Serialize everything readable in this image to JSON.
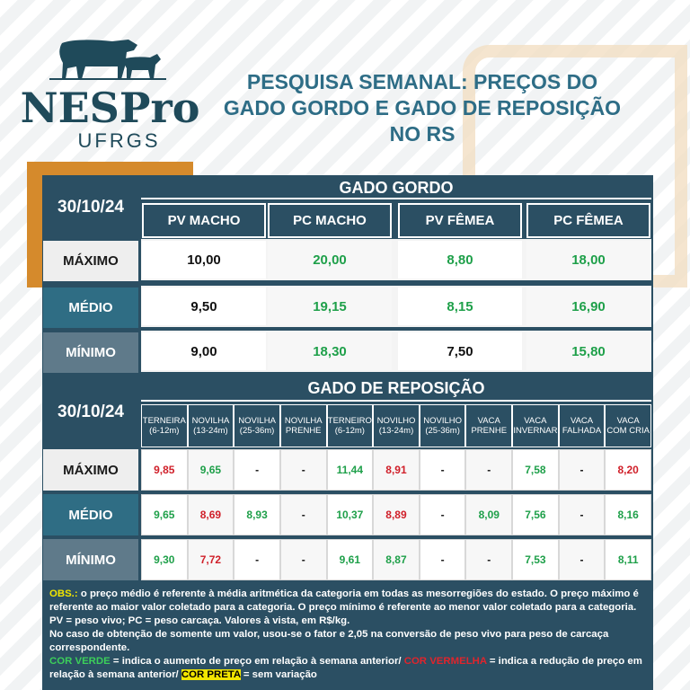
{
  "header": {
    "logo_title": "NESPro",
    "logo_subtitle": "UFRGS",
    "title_lines": [
      "PESQUISA SEMANAL: PREÇOS DO",
      "GADO GORDO E GADO DE REPOSIÇÃO",
      "NO RS"
    ]
  },
  "table1": {
    "date": "30/10/24",
    "title": "GADO GORDO",
    "columns": [
      "PV MACHO",
      "PC MACHO",
      "PV FÊMEA",
      "PC FÊMEA"
    ],
    "rows": [
      {
        "label": "MÁXIMO",
        "values": [
          "10,00",
          "20,00",
          "8,80",
          "18,00"
        ],
        "colors": [
          "#111111",
          "#1fa04a",
          "#1fa04a",
          "#1fa04a"
        ]
      },
      {
        "label": "MÉDIO",
        "values": [
          "9,50",
          "19,15",
          "8,15",
          "16,90"
        ],
        "colors": [
          "#111111",
          "#1fa04a",
          "#1fa04a",
          "#1fa04a"
        ]
      },
      {
        "label": "MÍNIMO",
        "values": [
          "9,00",
          "18,30",
          "7,50",
          "15,80"
        ],
        "colors": [
          "#111111",
          "#1fa04a",
          "#111111",
          "#1fa04a"
        ]
      }
    ]
  },
  "table2": {
    "date": "30/10/24",
    "title": "GADO DE REPOSIÇÃO",
    "columns": [
      [
        "TERNEIRA",
        "(6-12m)"
      ],
      [
        "NOVILHA",
        "(13-24m)"
      ],
      [
        "NOVILHA",
        "(25-36m)"
      ],
      [
        "NOVILHA",
        "PRENHE"
      ],
      [
        "TERNEIRO",
        "(6-12m)"
      ],
      [
        "NOVILHO",
        "(13-24m)"
      ],
      [
        "NOVILHO",
        "(25-36m)"
      ],
      [
        "VACA",
        "PRENHE"
      ],
      [
        "VACA",
        "INVERNAR"
      ],
      [
        "VACA",
        "FALHADA"
      ],
      [
        "VACA",
        "COM CRIA"
      ]
    ],
    "rows": [
      {
        "label": "MÁXIMO",
        "values": [
          "9,85",
          "9,65",
          "-",
          "-",
          "11,44",
          "8,91",
          "-",
          "-",
          "7,58",
          "-",
          "8,20"
        ],
        "colors": [
          "#d0202a",
          "#1fa04a",
          "#111111",
          "#111111",
          "#1fa04a",
          "#d0202a",
          "#111111",
          "#111111",
          "#1fa04a",
          "#111111",
          "#d0202a"
        ]
      },
      {
        "label": "MÉDIO",
        "values": [
          "9,65",
          "8,69",
          "8,93",
          "-",
          "10,37",
          "8,89",
          "-",
          "8,09",
          "7,56",
          "-",
          "8,16"
        ],
        "colors": [
          "#1fa04a",
          "#d0202a",
          "#1fa04a",
          "#111111",
          "#1fa04a",
          "#d0202a",
          "#111111",
          "#1fa04a",
          "#1fa04a",
          "#111111",
          "#1fa04a"
        ]
      },
      {
        "label": "MÍNIMO",
        "values": [
          "9,30",
          "7,72",
          "-",
          "-",
          "9,61",
          "8,87",
          "-",
          "-",
          "7,53",
          "-",
          "8,11"
        ],
        "colors": [
          "#1fa04a",
          "#d0202a",
          "#111111",
          "#111111",
          "#1fa04a",
          "#1fa04a",
          "#111111",
          "#111111",
          "#1fa04a",
          "#111111",
          "#1fa04a"
        ]
      }
    ]
  },
  "notes": [
    [
      {
        "text": "OBS.:",
        "color": "#f2e600"
      },
      {
        "text": " o preço médio é referente à média aritmética da categoria em todas as mesorregiões do estado. O preço máximo é referente ao maior valor coletado para a categoria. O preço mínimo é referente ao menor valor coletado para a categoria. PV = peso vivo; PC = peso carcaça. Valores à vista, em R$/kg.",
        "color": "#ffffff"
      }
    ],
    [
      {
        "text": "No caso de obtenção de somente um valor, usou-se o fator e 2,05 na conversão de peso vivo para peso de carcaça correspondente.",
        "color": "#ffffff"
      }
    ],
    [
      {
        "text": "COR VERDE",
        "color": "#3ccf5a"
      },
      {
        "text": " = indica o aumento de preço em relação à semana anterior/ ",
        "color": "#ffffff"
      },
      {
        "text": "COR VERMELHA",
        "color": "#e0242c"
      },
      {
        "text": " = indica a redução de preço em relação à semana anterior/ ",
        "color": "#ffffff"
      },
      {
        "text": "COR PRETA",
        "color": "#000000",
        "background": "#f2e600"
      },
      {
        "text": " = sem variação",
        "color": "#ffffff"
      }
    ]
  ]
}
